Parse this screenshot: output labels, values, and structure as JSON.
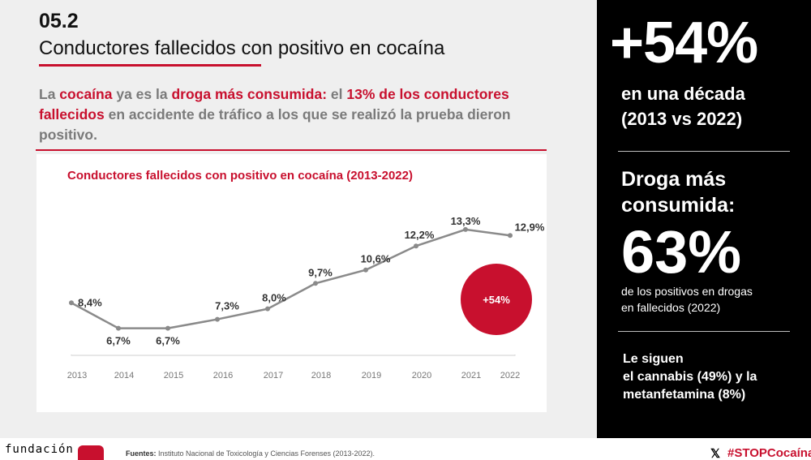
{
  "header": {
    "section_number": "05.2",
    "title": "Conductores fallecidos con positivo en cocaína"
  },
  "lead": {
    "p1": "La ",
    "h1": "cocaína",
    "p2": " ya es la ",
    "h2": "droga más consumida:",
    "p3": " el ",
    "h3": "13% de los conductores fallecidos",
    "p4": " en accidente de tráfico a los que se realizó la prueba dieron positivo."
  },
  "chart_data": {
    "type": "line",
    "title": "Conductores fallecidos con positivo en cocaína (2013-2022)",
    "categories": [
      "2013",
      "2014",
      "2015",
      "2016",
      "2017",
      "2018",
      "2019",
      "2020",
      "2021",
      "2022"
    ],
    "values": [
      8.4,
      6.7,
      6.7,
      7.3,
      8.0,
      9.7,
      10.6,
      12.2,
      13.3,
      12.9
    ],
    "data_labels": [
      "8,4%",
      "6,7%",
      "6,7%",
      "7,3%",
      "8,0%",
      "9,7%",
      "10,6%",
      "12,2%",
      "13,3%",
      "12,9%"
    ],
    "annotation": "+54%",
    "ylim": [
      5,
      14
    ],
    "grid": false,
    "line_color": "#8a8a8a",
    "annotation_color": "#c8102e"
  },
  "right": {
    "big_percent": "+54%",
    "decade_line1": "en una década",
    "decade_line2": "(2013 vs 2022)",
    "droga_line1": "Droga más",
    "droga_line2": "consumida:",
    "big_63": "63%",
    "positivos_line1": "de los positivos en drogas",
    "positivos_line2": "en fallecidos (2022)",
    "siguen_line1": "Le siguen",
    "siguen_line2": "el cannabis (49%) y la",
    "siguen_line3": "metanfetamina (8%)"
  },
  "footer": {
    "logo_text": "fundación",
    "sources_label": "Fuentes:",
    "sources_text": " Instituto Nacional de Toxicología y Ciencias Forenses (2013-2022).",
    "x_icon": "𝕏",
    "hashtag": "#STOPCocaína"
  },
  "colors": {
    "accent": "#c8102e",
    "panel_bg": "#000000",
    "left_bg": "#efefef"
  }
}
